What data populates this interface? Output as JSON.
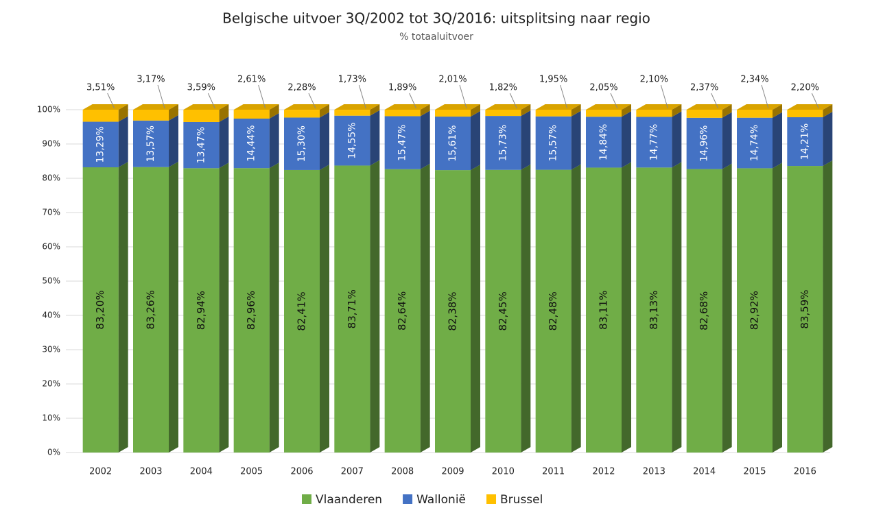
{
  "chart_data": {
    "type": "stacked-bar-3d",
    "title": "Belgische uitvoer 3Q/2002 tot 3Q/2016: uitsplitsing naar regio",
    "subtitle": "% totaaluitvoer",
    "categories": [
      "2002",
      "2003",
      "2004",
      "2005",
      "2006",
      "2007",
      "2008",
      "2009",
      "2010",
      "2011",
      "2012",
      "2013",
      "2014",
      "2015",
      "2016"
    ],
    "series": [
      {
        "name": "Vlaanderen",
        "color": "#70ad47",
        "values": [
          83.2,
          83.26,
          82.94,
          82.96,
          82.41,
          83.71,
          82.64,
          82.38,
          82.45,
          82.48,
          83.11,
          83.13,
          82.68,
          82.92,
          83.59
        ],
        "value_labels": [
          "83,20%",
          "83,26%",
          "82,94%",
          "82,96%",
          "82,41%",
          "83,71%",
          "82,64%",
          "82,38%",
          "82,45%",
          "82,48%",
          "83,11%",
          "83,13%",
          "82,68%",
          "82,92%",
          "83,59%"
        ]
      },
      {
        "name": "Wallonië",
        "color": "#4472c4",
        "values": [
          13.29,
          13.57,
          13.47,
          14.44,
          15.3,
          14.55,
          15.47,
          15.61,
          15.73,
          15.57,
          14.84,
          14.77,
          14.96,
          14.74,
          14.21
        ],
        "value_labels": [
          "13,29%",
          "13,57%",
          "13,47%",
          "14,44%",
          "15,30%",
          "14,55%",
          "15,47%",
          "15,61%",
          "15,73%",
          "15,57%",
          "14,84%",
          "14,77%",
          "14,96%",
          "14,74%",
          "14,21%"
        ]
      },
      {
        "name": "Brussel",
        "color": "#ffc000",
        "values": [
          3.51,
          3.17,
          3.59,
          2.61,
          2.28,
          1.73,
          1.89,
          2.01,
          1.82,
          1.95,
          2.05,
          2.1,
          2.37,
          2.34,
          2.2
        ],
        "value_labels": [
          "3,51%",
          "3,17%",
          "3,59%",
          "2,61%",
          "2,28%",
          "1,73%",
          "1,89%",
          "2,01%",
          "1,82%",
          "1,95%",
          "2,05%",
          "2,10%",
          "2,37%",
          "2,34%",
          "2,20%"
        ]
      }
    ],
    "ylim": [
      0,
      100
    ],
    "yticks": [
      {
        "value": 0,
        "label": "0%"
      },
      {
        "value": 10,
        "label": "10%"
      },
      {
        "value": 20,
        "label": "20%"
      },
      {
        "value": 30,
        "label": "30%"
      },
      {
        "value": 40,
        "label": "40%"
      },
      {
        "value": 50,
        "label": "50%"
      },
      {
        "value": 60,
        "label": "60%"
      },
      {
        "value": 70,
        "label": "70%"
      },
      {
        "value": 80,
        "label": "80%"
      },
      {
        "value": 90,
        "label": "90%"
      },
      {
        "value": 100,
        "label": "100%"
      }
    ],
    "grid": true,
    "legend": "bottom"
  }
}
